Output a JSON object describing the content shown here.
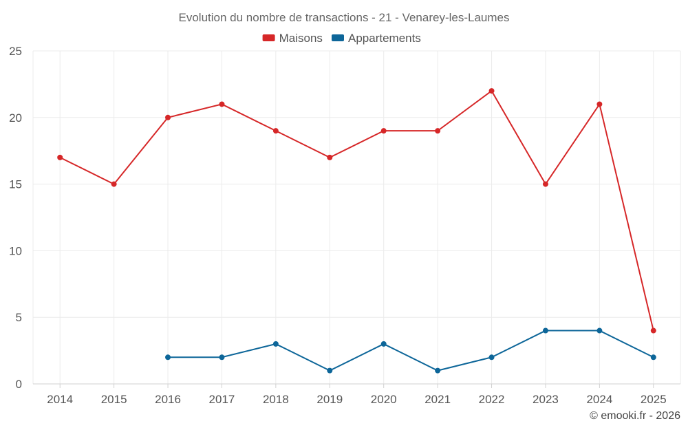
{
  "chart_data": {
    "type": "line",
    "title": "Evolution du nombre de transactions - 21 - Venarey-les-Laumes",
    "x": [
      "2014",
      "2015",
      "2016",
      "2017",
      "2018",
      "2019",
      "2020",
      "2021",
      "2022",
      "2023",
      "2024",
      "2025"
    ],
    "ylim": [
      0,
      25
    ],
    "yticks": [
      0,
      5,
      10,
      15,
      20,
      25
    ],
    "grid": true,
    "legend_position": "top-center",
    "series": [
      {
        "name": "Maisons",
        "color": "#d62728",
        "values": [
          17,
          15,
          20,
          21,
          19,
          17,
          19,
          19,
          22,
          15,
          21,
          4
        ]
      },
      {
        "name": "Appartements",
        "color": "#0d6699",
        "values": [
          null,
          null,
          2,
          2,
          3,
          1,
          3,
          1,
          2,
          4,
          4,
          2
        ]
      }
    ]
  },
  "credit": "© emooki.fr - 2026"
}
